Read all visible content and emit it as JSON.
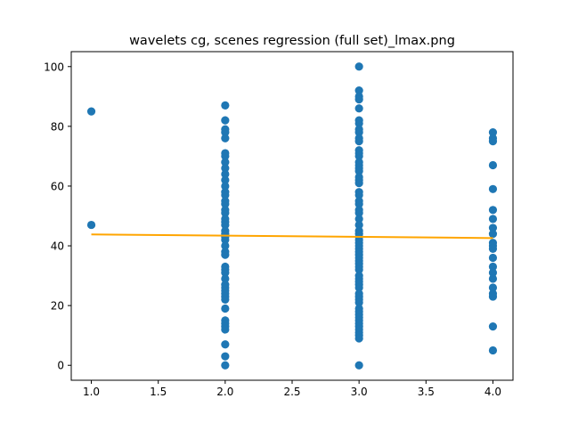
{
  "chart_data": {
    "type": "scatter",
    "title": "wavelets cg, scenes regression (full set)_lmax.png",
    "xlabel": "",
    "ylabel": "",
    "xlim": [
      0.85,
      4.15
    ],
    "ylim": [
      -5,
      105
    ],
    "x_ticks": [
      1.0,
      1.5,
      2.0,
      2.5,
      3.0,
      3.5,
      4.0
    ],
    "x_tick_labels": [
      "1.0",
      "1.5",
      "2.0",
      "2.5",
      "3.0",
      "3.5",
      "4.0"
    ],
    "y_ticks": [
      0,
      20,
      40,
      60,
      80,
      100
    ],
    "y_tick_labels": [
      "0",
      "20",
      "40",
      "60",
      "80",
      "100"
    ],
    "grid": false,
    "legend": "none",
    "series": [
      {
        "kind": "scatter",
        "color": "#1f77b4",
        "points": [
          [
            1,
            85
          ],
          [
            1,
            47
          ],
          [
            2,
            87
          ],
          [
            2,
            82
          ],
          [
            2,
            79
          ],
          [
            2,
            78
          ],
          [
            2,
            76
          ],
          [
            2,
            71
          ],
          [
            2,
            70
          ],
          [
            2,
            68
          ],
          [
            2,
            66
          ],
          [
            2,
            64
          ],
          [
            2,
            62
          ],
          [
            2,
            60
          ],
          [
            2,
            58
          ],
          [
            2,
            57
          ],
          [
            2,
            55
          ],
          [
            2,
            54
          ],
          [
            2,
            52
          ],
          [
            2,
            51
          ],
          [
            2,
            49
          ],
          [
            2,
            48
          ],
          [
            2,
            47
          ],
          [
            2,
            45
          ],
          [
            2,
            44
          ],
          [
            2,
            43
          ],
          [
            2,
            42
          ],
          [
            2,
            40
          ],
          [
            2,
            38
          ],
          [
            2,
            37
          ],
          [
            2,
            33
          ],
          [
            2,
            32
          ],
          [
            2,
            31
          ],
          [
            2,
            29
          ],
          [
            2,
            27
          ],
          [
            2,
            26
          ],
          [
            2,
            25
          ],
          [
            2,
            24
          ],
          [
            2,
            23
          ],
          [
            2,
            22
          ],
          [
            2,
            19
          ],
          [
            2,
            15
          ],
          [
            2,
            14
          ],
          [
            2,
            13
          ],
          [
            2,
            12
          ],
          [
            2,
            7
          ],
          [
            2,
            3
          ],
          [
            2,
            0
          ],
          [
            3,
            100
          ],
          [
            3,
            92
          ],
          [
            3,
            90
          ],
          [
            3,
            89
          ],
          [
            3,
            86
          ],
          [
            3,
            82
          ],
          [
            3,
            81
          ],
          [
            3,
            79
          ],
          [
            3,
            78
          ],
          [
            3,
            76
          ],
          [
            3,
            75
          ],
          [
            3,
            72
          ],
          [
            3,
            71
          ],
          [
            3,
            70
          ],
          [
            3,
            68
          ],
          [
            3,
            67
          ],
          [
            3,
            66
          ],
          [
            3,
            65
          ],
          [
            3,
            63
          ],
          [
            3,
            62
          ],
          [
            3,
            61
          ],
          [
            3,
            58
          ],
          [
            3,
            57
          ],
          [
            3,
            55
          ],
          [
            3,
            54
          ],
          [
            3,
            52
          ],
          [
            3,
            51
          ],
          [
            3,
            49
          ],
          [
            3,
            47
          ],
          [
            3,
            45
          ],
          [
            3,
            44
          ],
          [
            3,
            43
          ],
          [
            3,
            42
          ],
          [
            3,
            41
          ],
          [
            3,
            40
          ],
          [
            3,
            39
          ],
          [
            3,
            38
          ],
          [
            3,
            37
          ],
          [
            3,
            36
          ],
          [
            3,
            35
          ],
          [
            3,
            34
          ],
          [
            3,
            33
          ],
          [
            3,
            32
          ],
          [
            3,
            30
          ],
          [
            3,
            29
          ],
          [
            3,
            28
          ],
          [
            3,
            27
          ],
          [
            3,
            26
          ],
          [
            3,
            24
          ],
          [
            3,
            23
          ],
          [
            3,
            22
          ],
          [
            3,
            21
          ],
          [
            3,
            19
          ],
          [
            3,
            18
          ],
          [
            3,
            17
          ],
          [
            3,
            16
          ],
          [
            3,
            15
          ],
          [
            3,
            14
          ],
          [
            3,
            13
          ],
          [
            3,
            12
          ],
          [
            3,
            11
          ],
          [
            3,
            10
          ],
          [
            3,
            9
          ],
          [
            3,
            0
          ],
          [
            4,
            78
          ],
          [
            4,
            76
          ],
          [
            4,
            75
          ],
          [
            4,
            67
          ],
          [
            4,
            59
          ],
          [
            4,
            52
          ],
          [
            4,
            49
          ],
          [
            4,
            46
          ],
          [
            4,
            44
          ],
          [
            4,
            41
          ],
          [
            4,
            40
          ],
          [
            4,
            39
          ],
          [
            4,
            36
          ],
          [
            4,
            33
          ],
          [
            4,
            31
          ],
          [
            4,
            29
          ],
          [
            4,
            26
          ],
          [
            4,
            24
          ],
          [
            4,
            23
          ],
          [
            4,
            13
          ],
          [
            4,
            5
          ]
        ]
      },
      {
        "kind": "line",
        "color": "#ffa500",
        "x": [
          1,
          4
        ],
        "y": [
          43.8,
          42.6
        ]
      }
    ]
  }
}
